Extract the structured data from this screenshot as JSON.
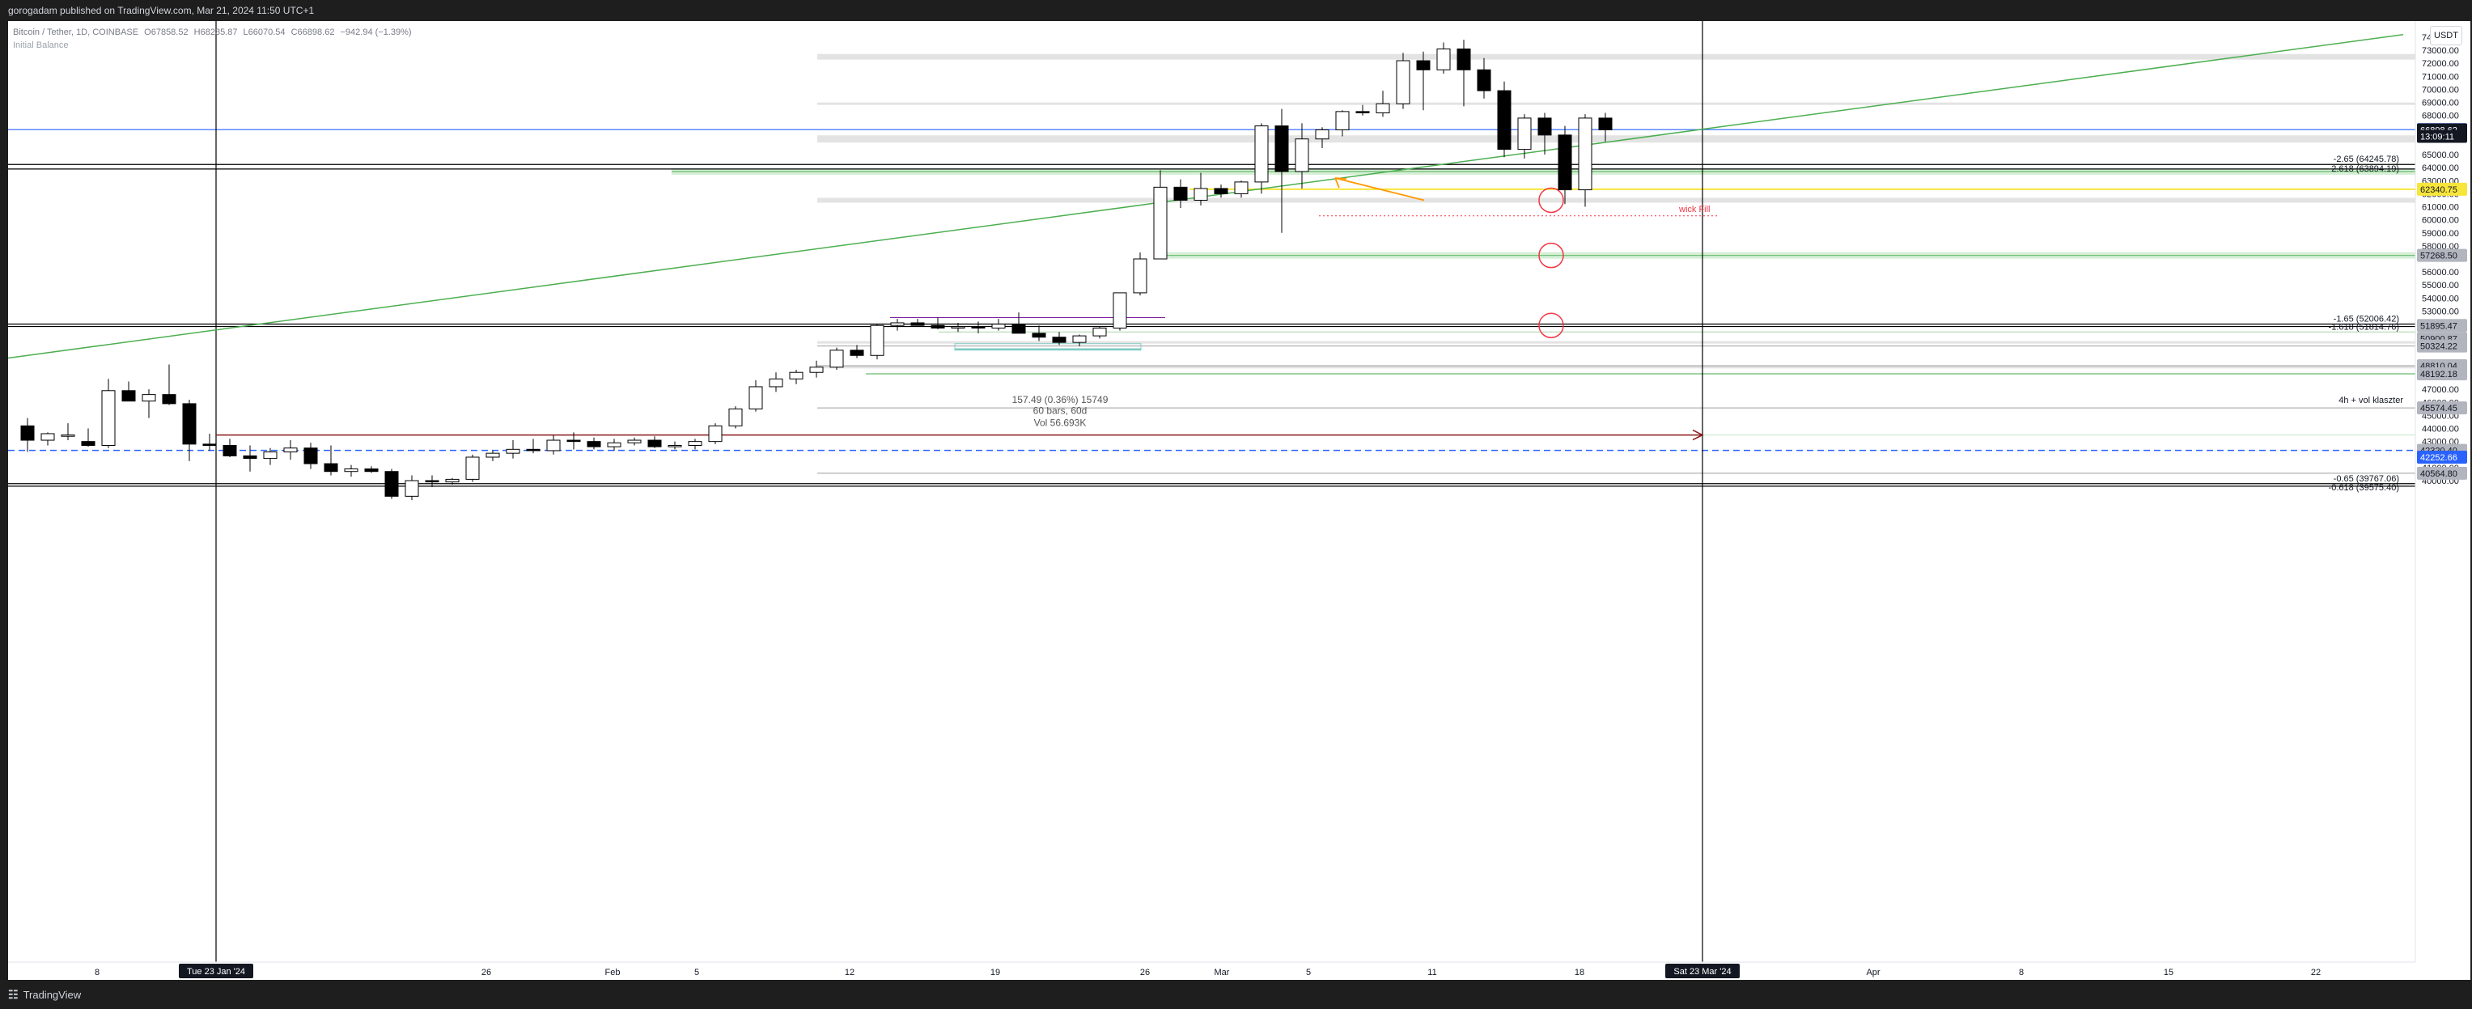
{
  "header": {
    "publisher": "gorogadam published on TradingView.com, Mar 21, 2024 11:50 UTC+1"
  },
  "legend": {
    "title": "Bitcoin / Tether, 1D, COINBASE",
    "open": "O67858.52",
    "high": "H68235.87",
    "low": "L66070.54",
    "close": "C66898.62",
    "change": "−942.94 (−1.39%)",
    "indicator": "Initial Balance"
  },
  "currency_button": "USDT",
  "price_axis": {
    "ticks": [
      "74000.00",
      "73000.00",
      "72000.00",
      "71000.00",
      "70000.00",
      "69000.00",
      "68000.00",
      "67000.00",
      "65000.00",
      "64000.00",
      "63000.00",
      "62000.00",
      "61000.00",
      "60000.00",
      "59000.00",
      "58000.00",
      "56000.00",
      "55000.00",
      "54000.00",
      "53000.00",
      "52000.00",
      "49000.00",
      "47000.00",
      "46000.00",
      "45000.00",
      "44000.00",
      "43000.00",
      "41000.00",
      "40000.00"
    ],
    "labels": [
      {
        "text": "66914.60",
        "color": "#2962ff",
        "text_color": "#ffffff",
        "price": 66914.6
      },
      {
        "text": "66898.62",
        "color": "#131722",
        "text_color": "#ffffff",
        "price": 66898.62
      },
      {
        "text": "13:09:11",
        "color": "#131722",
        "text_color": "#ffffff",
        "price": 66400
      },
      {
        "text": "62340.75",
        "color": "#f7e53a",
        "text_color": "#131722",
        "price": 62340.75
      },
      {
        "text": "57268.50",
        "color": "#b2b5be",
        "text_color": "#131722",
        "price": 57268.5
      },
      {
        "text": "51895.47",
        "color": "#b2b5be",
        "text_color": "#131722",
        "price": 51895.47
      },
      {
        "text": "50900.87",
        "color": "#b2b5be",
        "text_color": "#131722",
        "price": 50900.87
      },
      {
        "text": "50324.22",
        "color": "#b2b5be",
        "text_color": "#131722",
        "price": 50324.22
      },
      {
        "text": "48810.04",
        "color": "#b2b5be",
        "text_color": "#131722",
        "price": 48810.04
      },
      {
        "text": "48192.18",
        "color": "#b2b5be",
        "text_color": "#131722",
        "price": 48192.18
      },
      {
        "text": "45574.45",
        "color": "#b2b5be",
        "text_color": "#131722",
        "price": 45574.45
      },
      {
        "text": "42320.40",
        "color": "#b2b5be",
        "text_color": "#131722",
        "price": 42320.4
      },
      {
        "text": "42252.66",
        "color": "#2962ff",
        "text_color": "#ffffff",
        "price": 41800
      },
      {
        "text": "40564.80",
        "color": "#b2b5be",
        "text_color": "#131722",
        "price": 40564.8
      }
    ]
  },
  "time_axis": {
    "ticks": [
      "8",
      "15",
      "26",
      "Feb",
      "5",
      "12",
      "19",
      "26",
      "Mar",
      "5",
      "11",
      "18",
      "Apr",
      "8",
      "15",
      "22"
    ],
    "highlights": [
      "Tue 23 Jan '24",
      "Sat 23 Mar '24"
    ]
  },
  "annotations": {
    "fib_upper_1": "-2.65 (64245.78)",
    "fib_upper_2": "-2.618 (63894.19)",
    "fib_mid_1": "-1.65 (52006.42)",
    "fib_mid_2": "-1.618 (51814.76)",
    "fib_low_1": "-0.65 (39767.06)",
    "fib_low_2": "-0.618 (39575.40)",
    "wick_fill": "wick Fill",
    "vol_cluster": "4h + vol klaszter",
    "range_stats_1": "157.49 (0.36%) 15749",
    "range_stats_2": "60 bars, 60d",
    "range_stats_3": "Vol 56.693K"
  },
  "footer": {
    "brand": "TradingView"
  },
  "colors": {
    "up_candle": "#ffffff",
    "down_candle": "#000000",
    "trendline": "#4caf50",
    "blue_line": "#2962ff",
    "yellow_line": "#f7e53a",
    "red_circle": "#f23645",
    "orange_arrow": "#ff9800"
  }
}
